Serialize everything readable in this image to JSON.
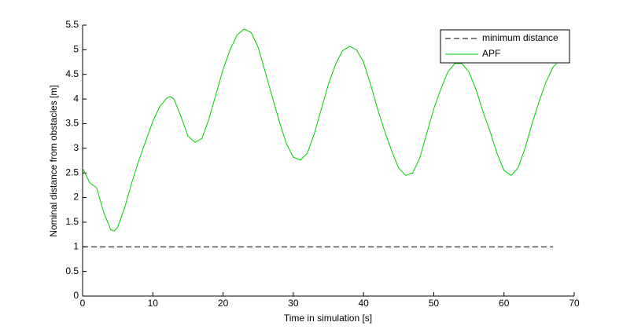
{
  "chart_data": {
    "type": "line",
    "xlabel": "Time in simulation [s]",
    "ylabel": "Nominal distance from obstacles [m]",
    "xlim": [
      0,
      70
    ],
    "xticks": [
      0,
      10,
      20,
      30,
      40,
      50,
      60,
      70
    ],
    "ylim": [
      0,
      5.5
    ],
    "yticks": [
      0,
      0.5,
      1,
      1.5,
      2,
      2.5,
      3,
      3.5,
      4,
      4.5,
      5,
      5.5
    ],
    "legend": "upper right",
    "series": [
      {
        "name": "minimum distance",
        "color": "#000000",
        "dashed": true,
        "x": [
          0,
          67
        ],
        "values": [
          1,
          1
        ]
      },
      {
        "name": "APF",
        "color": "#00cc00",
        "dashed": false,
        "x": [
          0,
          1,
          2,
          3,
          4,
          4.5,
          5,
          6,
          7,
          8,
          9,
          10,
          11,
          12,
          12.5,
          13,
          14,
          15,
          16,
          17,
          18,
          19,
          20,
          21,
          22,
          23,
          24,
          25,
          26,
          27,
          28,
          29,
          30,
          31,
          32,
          33,
          34,
          35,
          36,
          37,
          38,
          39,
          40,
          41,
          42,
          43,
          44,
          45,
          46,
          47,
          48,
          49,
          50,
          51,
          52,
          53,
          54,
          55,
          56,
          57,
          58,
          59,
          60,
          61,
          62,
          63,
          64,
          65,
          66,
          67,
          67.5
        ],
        "values": [
          2.6,
          2.3,
          2.2,
          1.7,
          1.35,
          1.32,
          1.4,
          1.8,
          2.3,
          2.75,
          3.15,
          3.55,
          3.85,
          4.02,
          4.05,
          4.0,
          3.65,
          3.25,
          3.12,
          3.2,
          3.6,
          4.1,
          4.6,
          5.0,
          5.3,
          5.42,
          5.35,
          5.05,
          4.55,
          4.05,
          3.55,
          3.1,
          2.82,
          2.76,
          2.9,
          3.3,
          3.8,
          4.3,
          4.7,
          4.98,
          5.07,
          5.0,
          4.75,
          4.3,
          3.8,
          3.35,
          2.95,
          2.6,
          2.45,
          2.5,
          2.8,
          3.3,
          3.8,
          4.2,
          4.55,
          4.72,
          4.72,
          4.55,
          4.2,
          3.75,
          3.35,
          2.9,
          2.55,
          2.45,
          2.6,
          3.0,
          3.5,
          3.95,
          4.35,
          4.65,
          4.72
        ]
      }
    ]
  }
}
